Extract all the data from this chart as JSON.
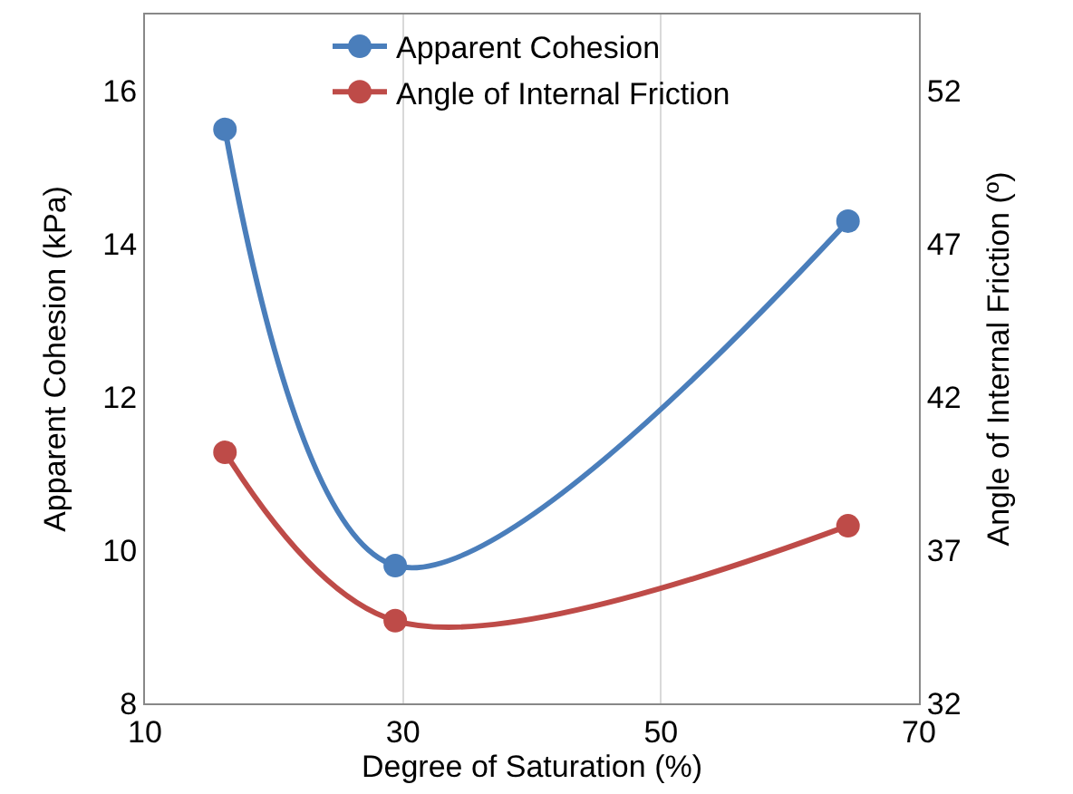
{
  "chart_data": {
    "type": "line",
    "xlabel": "Degree of Saturation (%)",
    "ylabel": "Apparent Cohesion (kPa)",
    "y2label": "Angle of Internal Friction (º)",
    "x": [
      16.2,
      29.4,
      64.5
    ],
    "series": [
      {
        "name": "Apparent Cohesion",
        "color": "#4a7ebb",
        "values": [
          15.5,
          9.8,
          14.3
        ]
      },
      {
        "name": "Angle of Internal Friction",
        "color": "#be4b48",
        "values": [
          40.2,
          34.7,
          37.8
        ],
        "axis": "y2"
      }
    ],
    "xlim": [
      10,
      70
    ],
    "xticks": [
      10,
      30,
      50,
      70
    ],
    "ylim": [
      8,
      17
    ],
    "yticks": [
      8,
      10,
      12,
      14,
      16
    ],
    "y2lim": [
      32,
      54.5
    ],
    "y2ticks": [
      32,
      37,
      42,
      47,
      52
    ],
    "grid": "x",
    "legend": "top",
    "marker": "circle",
    "line_style": "solid"
  }
}
